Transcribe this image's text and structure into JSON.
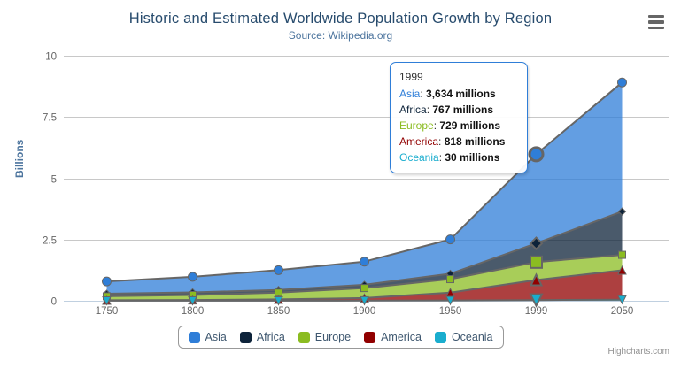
{
  "chart": {
    "title": "Historic and Estimated Worldwide Population Growth by Region",
    "subtitle": "Source: Wikipedia.org",
    "credits": "Highcharts.com",
    "export_icon": "hamburger-menu-icon"
  },
  "chart_data": {
    "type": "area",
    "stacking": "normal",
    "title": "Historic and Estimated Worldwide Population Growth by Region",
    "subtitle": "Source: Wikipedia.org",
    "categories": [
      "1750",
      "1800",
      "1850",
      "1900",
      "1950",
      "1999",
      "2050"
    ],
    "series": [
      {
        "name": "Asia",
        "color": "#2f7ed8",
        "marker": "circle",
        "values": [
          502,
          635,
          809,
          947,
          1402,
          3634,
          5268
        ]
      },
      {
        "name": "Africa",
        "color": "#0d233a",
        "marker": "diamond",
        "values": [
          106,
          107,
          111,
          133,
          221,
          767,
          1766
        ]
      },
      {
        "name": "Europe",
        "color": "#8bbc21",
        "marker": "square",
        "values": [
          163,
          203,
          276,
          408,
          547,
          729,
          628
        ]
      },
      {
        "name": "America",
        "color": "#910000",
        "marker": "triangle",
        "values": [
          18,
          31,
          54,
          105,
          323,
          818,
          1201
        ]
      },
      {
        "name": "Oceania",
        "color": "#1aadce",
        "marker": "triangle-down",
        "values": [
          2,
          2,
          2,
          6,
          13,
          30,
          46
        ]
      }
    ],
    "units": "millions",
    "xlabel": "",
    "ylabel": "Billions",
    "ylim": [
      0,
      10
    ],
    "yticks": [
      0,
      2.5,
      5,
      7.5,
      10
    ],
    "ytick_labels": [
      "0",
      "2.5",
      "5",
      "7.5",
      "10"
    ],
    "grid": true,
    "legend_position": "bottom",
    "area_line_color": "#666666",
    "fill_opacity": 0.75,
    "gridline_color": "#c8c8c8",
    "axis_line_color": "#C0D0E0",
    "axis_label_color": "#666666",
    "hovered_category": "1999",
    "hovered_index": 5
  },
  "tooltip": {
    "header": "1999",
    "rows": [
      {
        "name": "Asia",
        "sep": ": ",
        "value": "3,634 millions",
        "color": "#2f7ed8"
      },
      {
        "name": "Africa",
        "sep": ": ",
        "value": "767 millions",
        "color": "#0d233a"
      },
      {
        "name": "Europe",
        "sep": ": ",
        "value": "729 millions",
        "color": "#8bbc21"
      },
      {
        "name": "America",
        "sep": ": ",
        "value": "818 millions",
        "color": "#910000"
      },
      {
        "name": "Oceania",
        "sep": ": ",
        "value": "30 millions",
        "color": "#1aadce"
      }
    ]
  }
}
